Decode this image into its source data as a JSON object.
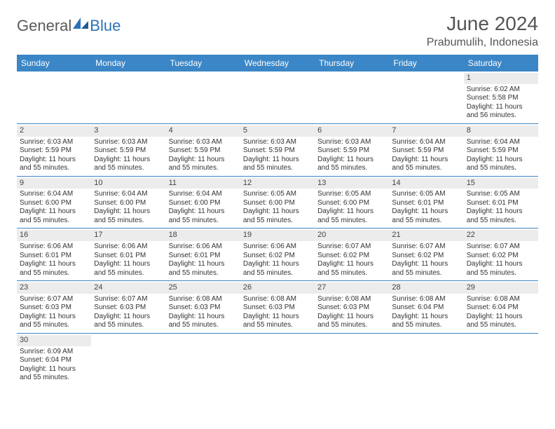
{
  "brand": {
    "part1": "General",
    "part2": "Blue"
  },
  "title": "June 2024",
  "location": "Prabumulih, Indonesia",
  "colors": {
    "header_bg": "#3b86c6",
    "header_text": "#ffffff",
    "daynum_bg": "#ececec",
    "row_border": "#3b86c6",
    "brand_gray": "#5a5a5a",
    "brand_blue": "#2b72b8",
    "body_text": "#333333",
    "page_bg": "#ffffff"
  },
  "typography": {
    "title_fontsize": 28,
    "location_fontsize": 16,
    "dayname_fontsize": 12,
    "cell_fontsize": 10,
    "logo_fontsize": 22
  },
  "calendar": {
    "day_names": [
      "Sunday",
      "Monday",
      "Tuesday",
      "Wednesday",
      "Thursday",
      "Friday",
      "Saturday"
    ],
    "weeks": [
      [
        null,
        null,
        null,
        null,
        null,
        null,
        {
          "n": "1",
          "sunrise": "6:02 AM",
          "sunset": "5:58 PM",
          "daylight": "11 hours and 56 minutes."
        }
      ],
      [
        {
          "n": "2",
          "sunrise": "6:03 AM",
          "sunset": "5:59 PM",
          "daylight": "11 hours and 55 minutes."
        },
        {
          "n": "3",
          "sunrise": "6:03 AM",
          "sunset": "5:59 PM",
          "daylight": "11 hours and 55 minutes."
        },
        {
          "n": "4",
          "sunrise": "6:03 AM",
          "sunset": "5:59 PM",
          "daylight": "11 hours and 55 minutes."
        },
        {
          "n": "5",
          "sunrise": "6:03 AM",
          "sunset": "5:59 PM",
          "daylight": "11 hours and 55 minutes."
        },
        {
          "n": "6",
          "sunrise": "6:03 AM",
          "sunset": "5:59 PM",
          "daylight": "11 hours and 55 minutes."
        },
        {
          "n": "7",
          "sunrise": "6:04 AM",
          "sunset": "5:59 PM",
          "daylight": "11 hours and 55 minutes."
        },
        {
          "n": "8",
          "sunrise": "6:04 AM",
          "sunset": "5:59 PM",
          "daylight": "11 hours and 55 minutes."
        }
      ],
      [
        {
          "n": "9",
          "sunrise": "6:04 AM",
          "sunset": "6:00 PM",
          "daylight": "11 hours and 55 minutes."
        },
        {
          "n": "10",
          "sunrise": "6:04 AM",
          "sunset": "6:00 PM",
          "daylight": "11 hours and 55 minutes."
        },
        {
          "n": "11",
          "sunrise": "6:04 AM",
          "sunset": "6:00 PM",
          "daylight": "11 hours and 55 minutes."
        },
        {
          "n": "12",
          "sunrise": "6:05 AM",
          "sunset": "6:00 PM",
          "daylight": "11 hours and 55 minutes."
        },
        {
          "n": "13",
          "sunrise": "6:05 AM",
          "sunset": "6:00 PM",
          "daylight": "11 hours and 55 minutes."
        },
        {
          "n": "14",
          "sunrise": "6:05 AM",
          "sunset": "6:01 PM",
          "daylight": "11 hours and 55 minutes."
        },
        {
          "n": "15",
          "sunrise": "6:05 AM",
          "sunset": "6:01 PM",
          "daylight": "11 hours and 55 minutes."
        }
      ],
      [
        {
          "n": "16",
          "sunrise": "6:06 AM",
          "sunset": "6:01 PM",
          "daylight": "11 hours and 55 minutes."
        },
        {
          "n": "17",
          "sunrise": "6:06 AM",
          "sunset": "6:01 PM",
          "daylight": "11 hours and 55 minutes."
        },
        {
          "n": "18",
          "sunrise": "6:06 AM",
          "sunset": "6:01 PM",
          "daylight": "11 hours and 55 minutes."
        },
        {
          "n": "19",
          "sunrise": "6:06 AM",
          "sunset": "6:02 PM",
          "daylight": "11 hours and 55 minutes."
        },
        {
          "n": "20",
          "sunrise": "6:07 AM",
          "sunset": "6:02 PM",
          "daylight": "11 hours and 55 minutes."
        },
        {
          "n": "21",
          "sunrise": "6:07 AM",
          "sunset": "6:02 PM",
          "daylight": "11 hours and 55 minutes."
        },
        {
          "n": "22",
          "sunrise": "6:07 AM",
          "sunset": "6:02 PM",
          "daylight": "11 hours and 55 minutes."
        }
      ],
      [
        {
          "n": "23",
          "sunrise": "6:07 AM",
          "sunset": "6:03 PM",
          "daylight": "11 hours and 55 minutes."
        },
        {
          "n": "24",
          "sunrise": "6:07 AM",
          "sunset": "6:03 PM",
          "daylight": "11 hours and 55 minutes."
        },
        {
          "n": "25",
          "sunrise": "6:08 AM",
          "sunset": "6:03 PM",
          "daylight": "11 hours and 55 minutes."
        },
        {
          "n": "26",
          "sunrise": "6:08 AM",
          "sunset": "6:03 PM",
          "daylight": "11 hours and 55 minutes."
        },
        {
          "n": "27",
          "sunrise": "6:08 AM",
          "sunset": "6:03 PM",
          "daylight": "11 hours and 55 minutes."
        },
        {
          "n": "28",
          "sunrise": "6:08 AM",
          "sunset": "6:04 PM",
          "daylight": "11 hours and 55 minutes."
        },
        {
          "n": "29",
          "sunrise": "6:08 AM",
          "sunset": "6:04 PM",
          "daylight": "11 hours and 55 minutes."
        }
      ],
      [
        {
          "n": "30",
          "sunrise": "6:09 AM",
          "sunset": "6:04 PM",
          "daylight": "11 hours and 55 minutes."
        },
        null,
        null,
        null,
        null,
        null,
        null
      ]
    ]
  },
  "labels": {
    "sunrise_prefix": "Sunrise: ",
    "sunset_prefix": "Sunset: ",
    "daylight_prefix": "Daylight: "
  }
}
